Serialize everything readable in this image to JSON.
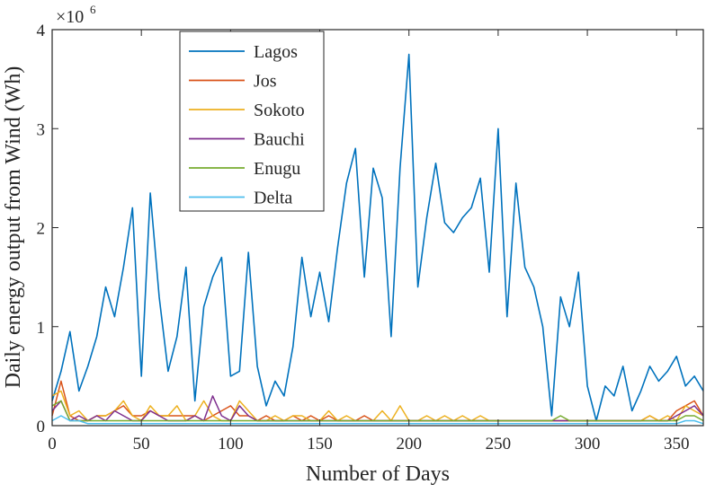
{
  "chart_data": {
    "type": "line",
    "title": "",
    "xlabel": "Number of Days",
    "ylabel": "Daily energy output from Wind (Wh)",
    "exponent_label": "×10",
    "exponent_power": "6",
    "xlim": [
      0,
      365
    ],
    "ylim": [
      0,
      4
    ],
    "y_scale": 1000000,
    "x_ticks": [
      0,
      50,
      100,
      150,
      200,
      250,
      300,
      350
    ],
    "x_tick_labels": [
      "0",
      "50",
      "100",
      "150",
      "200",
      "250",
      "300",
      "350"
    ],
    "y_ticks": [
      0,
      1,
      2,
      3,
      4
    ],
    "y_tick_labels": [
      "0",
      "1",
      "2",
      "3",
      "4"
    ],
    "grid": false,
    "legend_position": "top-left",
    "x_sample_step": 5,
    "series": [
      {
        "name": "Lagos",
        "color": "#0072BD",
        "values": [
          0.25,
          0.55,
          0.95,
          0.35,
          0.6,
          0.9,
          1.4,
          1.1,
          1.6,
          2.2,
          0.5,
          2.35,
          1.3,
          0.55,
          0.9,
          1.6,
          0.25,
          1.2,
          1.5,
          1.7,
          0.5,
          0.55,
          1.75,
          0.6,
          0.2,
          0.45,
          0.3,
          0.8,
          1.7,
          1.1,
          1.55,
          1.05,
          1.8,
          2.45,
          2.8,
          1.5,
          2.6,
          2.3,
          0.9,
          2.6,
          3.75,
          1.4,
          2.1,
          2.65,
          2.05,
          1.95,
          2.1,
          2.2,
          2.5,
          1.55,
          3.0,
          1.1,
          2.45,
          1.6,
          1.4,
          1.0,
          0.1,
          1.3,
          1.0,
          1.55,
          0.4,
          0.05,
          0.4,
          0.3,
          0.6,
          0.15,
          0.35,
          0.6,
          0.45,
          0.55,
          0.7,
          0.4,
          0.5,
          0.35
        ]
      },
      {
        "name": "Jos",
        "color": "#D95319",
        "values": [
          0.1,
          0.45,
          0.1,
          0.05,
          0.05,
          0.1,
          0.1,
          0.15,
          0.2,
          0.1,
          0.1,
          0.15,
          0.1,
          0.1,
          0.1,
          0.1,
          0.1,
          0.05,
          0.1,
          0.15,
          0.2,
          0.1,
          0.1,
          0.05,
          0.1,
          0.05,
          0.05,
          0.1,
          0.05,
          0.1,
          0.05,
          0.1,
          0.05,
          0.05,
          0.05,
          0.1,
          0.05,
          0.05,
          0.05,
          0.05,
          0.05,
          0.05,
          0.05,
          0.05,
          0.05,
          0.05,
          0.05,
          0.05,
          0.05,
          0.05,
          0.05,
          0.05,
          0.05,
          0.05,
          0.05,
          0.05,
          0.05,
          0.05,
          0.05,
          0.05,
          0.05,
          0.05,
          0.05,
          0.05,
          0.05,
          0.05,
          0.05,
          0.1,
          0.05,
          0.05,
          0.15,
          0.2,
          0.25,
          0.1
        ]
      },
      {
        "name": "Sokoto",
        "color": "#EDB120",
        "values": [
          0.3,
          0.35,
          0.1,
          0.15,
          0.05,
          0.1,
          0.1,
          0.15,
          0.25,
          0.1,
          0.05,
          0.2,
          0.1,
          0.1,
          0.2,
          0.05,
          0.1,
          0.25,
          0.1,
          0.05,
          0.05,
          0.25,
          0.15,
          0.05,
          0.05,
          0.1,
          0.05,
          0.1,
          0.1,
          0.05,
          0.05,
          0.15,
          0.05,
          0.1,
          0.05,
          0.05,
          0.05,
          0.15,
          0.05,
          0.2,
          0.05,
          0.05,
          0.1,
          0.05,
          0.1,
          0.05,
          0.1,
          0.05,
          0.1,
          0.05,
          0.05,
          0.05,
          0.05,
          0.05,
          0.05,
          0.05,
          0.05,
          0.05,
          0.05,
          0.05,
          0.05,
          0.05,
          0.05,
          0.05,
          0.05,
          0.05,
          0.05,
          0.1,
          0.05,
          0.1,
          0.05,
          0.2,
          0.15,
          0.1
        ]
      },
      {
        "name": "Bauchi",
        "color": "#7E2F8E",
        "values": [
          0.15,
          0.25,
          0.05,
          0.1,
          0.05,
          0.1,
          0.05,
          0.15,
          0.1,
          0.05,
          0.05,
          0.15,
          0.1,
          0.05,
          0.05,
          0.05,
          0.1,
          0.05,
          0.3,
          0.1,
          0.05,
          0.2,
          0.1,
          0.05,
          0.05,
          0.05,
          0.05,
          0.05,
          0.05,
          0.05,
          0.05,
          0.05,
          0.05,
          0.05,
          0.05,
          0.05,
          0.05,
          0.05,
          0.05,
          0.05,
          0.05,
          0.05,
          0.05,
          0.05,
          0.05,
          0.05,
          0.05,
          0.05,
          0.05,
          0.05,
          0.05,
          0.05,
          0.05,
          0.05,
          0.05,
          0.05,
          0.05,
          0.05,
          0.05,
          0.05,
          0.05,
          0.05,
          0.05,
          0.05,
          0.05,
          0.05,
          0.05,
          0.05,
          0.05,
          0.05,
          0.1,
          0.15,
          0.2,
          0.1
        ]
      },
      {
        "name": "Enugu",
        "color": "#77AC30",
        "values": [
          0.2,
          0.25,
          0.05,
          0.05,
          0.05,
          0.05,
          0.05,
          0.05,
          0.05,
          0.05,
          0.05,
          0.05,
          0.05,
          0.05,
          0.05,
          0.05,
          0.05,
          0.05,
          0.05,
          0.05,
          0.05,
          0.05,
          0.05,
          0.05,
          0.05,
          0.05,
          0.05,
          0.05,
          0.05,
          0.05,
          0.05,
          0.05,
          0.05,
          0.05,
          0.05,
          0.05,
          0.05,
          0.05,
          0.05,
          0.05,
          0.05,
          0.05,
          0.05,
          0.05,
          0.05,
          0.05,
          0.05,
          0.05,
          0.05,
          0.05,
          0.05,
          0.05,
          0.05,
          0.05,
          0.05,
          0.05,
          0.05,
          0.1,
          0.05,
          0.05,
          0.05,
          0.05,
          0.05,
          0.05,
          0.05,
          0.05,
          0.05,
          0.05,
          0.05,
          0.05,
          0.05,
          0.1,
          0.1,
          0.05
        ]
      },
      {
        "name": "Delta",
        "color": "#4DBEEE",
        "values": [
          0.05,
          0.1,
          0.05,
          0.05,
          0.02,
          0.02,
          0.02,
          0.02,
          0.02,
          0.02,
          0.02,
          0.02,
          0.02,
          0.02,
          0.02,
          0.02,
          0.02,
          0.02,
          0.02,
          0.02,
          0.02,
          0.02,
          0.02,
          0.02,
          0.02,
          0.02,
          0.02,
          0.02,
          0.02,
          0.02,
          0.02,
          0.02,
          0.02,
          0.02,
          0.02,
          0.02,
          0.02,
          0.02,
          0.02,
          0.02,
          0.02,
          0.02,
          0.02,
          0.02,
          0.02,
          0.02,
          0.02,
          0.02,
          0.02,
          0.02,
          0.02,
          0.02,
          0.02,
          0.02,
          0.02,
          0.02,
          0.02,
          0.02,
          0.02,
          0.02,
          0.02,
          0.02,
          0.02,
          0.02,
          0.02,
          0.02,
          0.02,
          0.02,
          0.02,
          0.02,
          0.02,
          0.05,
          0.05,
          0.02
        ]
      }
    ]
  }
}
